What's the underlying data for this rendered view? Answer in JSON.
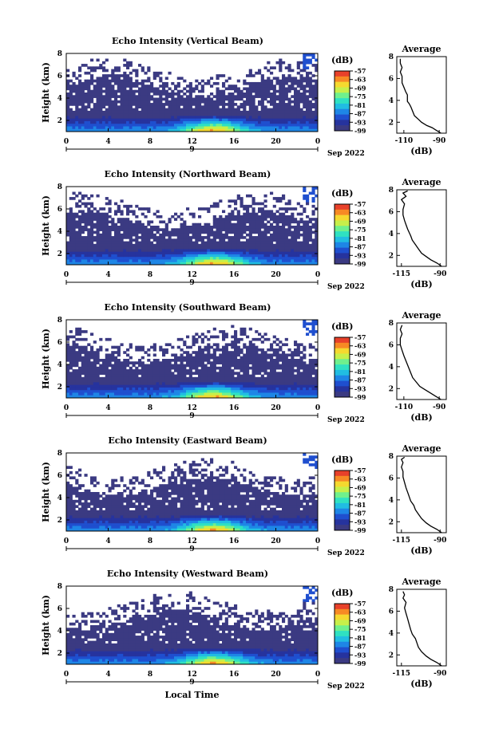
{
  "figure": {
    "xlabel": "Local Time",
    "colormap": [
      "#3b3a82",
      "#26339e",
      "#1f4fcf",
      "#1e86e6",
      "#21bde2",
      "#2fe1c2",
      "#6ff08d",
      "#c7ef4a",
      "#f5d92f",
      "#f78a24",
      "#e8412a"
    ]
  },
  "chart_data": [
    {
      "type": "heatmap",
      "title": "Echo Intensity (Vertical Beam)",
      "ylabel": "Height (km)",
      "x_ticks": [
        "0",
        "4",
        "8",
        "12",
        "16",
        "20",
        "0"
      ],
      "xlim": [
        0,
        24
      ],
      "date_day": "9",
      "date_month": "Sep 2022",
      "ylim": [
        1,
        8
      ],
      "y_ticks": [
        "2",
        "4",
        "6",
        "8"
      ],
      "colorbar_label": "(dB)",
      "colorbar_ticks": [
        "-57",
        "-63",
        "-69",
        "-75",
        "-81",
        "-87",
        "-93",
        "-99"
      ],
      "colorbar_range": [
        -99,
        -57
      ],
      "profile": {
        "title": "Average",
        "xlabel": "(dB)",
        "x_ticks": [
          "-110",
          "-90"
        ],
        "xlim": [
          -114,
          -86
        ],
        "y_ticks": [
          "2",
          "4",
          "6",
          "8"
        ],
        "ylim": [
          1,
          8
        ],
        "points": [
          [
            -89,
            1.0
          ],
          [
            -92,
            1.3
          ],
          [
            -94,
            1.5
          ],
          [
            -97,
            1.7
          ],
          [
            -100,
            2.0
          ],
          [
            -102,
            2.3
          ],
          [
            -104,
            2.6
          ],
          [
            -105,
            3.0
          ],
          [
            -106,
            3.4
          ],
          [
            -107,
            3.7
          ],
          [
            -108,
            3.9
          ],
          [
            -108,
            4.2
          ],
          [
            -108,
            4.5
          ],
          [
            -109,
            4.8
          ],
          [
            -110,
            5.2
          ],
          [
            -111,
            5.6
          ],
          [
            -111,
            6.2
          ],
          [
            -112,
            6.6
          ],
          [
            -111,
            7.0
          ],
          [
            -112,
            7.4
          ],
          [
            -112,
            7.8
          ]
        ]
      }
    },
    {
      "type": "heatmap",
      "title": "Echo Intensity (Northward Beam)",
      "ylabel": "Height (km)",
      "x_ticks": [
        "0",
        "4",
        "8",
        "12",
        "16",
        "20",
        "0"
      ],
      "xlim": [
        0,
        24
      ],
      "date_day": "9",
      "date_month": "Sep 2022",
      "ylim": [
        1,
        8
      ],
      "y_ticks": [
        "2",
        "4",
        "6",
        "8"
      ],
      "colorbar_label": "(dB)",
      "colorbar_ticks": [
        "-57",
        "-63",
        "-69",
        "-75",
        "-81",
        "-87",
        "-93",
        "-99"
      ],
      "colorbar_range": [
        -99,
        -57
      ],
      "profile": {
        "title": "Average",
        "xlabel": "(dB)",
        "x_ticks": [
          "-115",
          "-90"
        ],
        "xlim": [
          -118,
          -86
        ],
        "y_ticks": [
          "2",
          "4",
          "6",
          "8"
        ],
        "ylim": [
          1,
          8
        ],
        "points": [
          [
            -89,
            1.0
          ],
          [
            -92,
            1.3
          ],
          [
            -96,
            1.6
          ],
          [
            -99,
            1.9
          ],
          [
            -102,
            2.2
          ],
          [
            -104,
            2.6
          ],
          [
            -106,
            3.0
          ],
          [
            -108,
            3.4
          ],
          [
            -109,
            3.8
          ],
          [
            -110,
            4.1
          ],
          [
            -111,
            4.4
          ],
          [
            -112,
            4.8
          ],
          [
            -113,
            5.2
          ],
          [
            -114,
            5.7
          ],
          [
            -114,
            6.2
          ],
          [
            -113,
            6.7
          ],
          [
            -115,
            7.1
          ],
          [
            -112,
            7.4
          ],
          [
            -114,
            7.7
          ],
          [
            -111,
            7.9
          ]
        ]
      }
    },
    {
      "type": "heatmap",
      "title": "Echo Intensity (Southward Beam)",
      "ylabel": "Height (km)",
      "x_ticks": [
        "0",
        "4",
        "8",
        "12",
        "16",
        "20",
        "0"
      ],
      "xlim": [
        0,
        24
      ],
      "date_day": "9",
      "date_month": "Sep 2022",
      "ylim": [
        1,
        8
      ],
      "y_ticks": [
        "2",
        "4",
        "6",
        "8"
      ],
      "colorbar_label": "(dB)",
      "colorbar_ticks": [
        "-57",
        "-63",
        "-69",
        "-75",
        "-81",
        "-87",
        "-93",
        "-99"
      ],
      "colorbar_range": [
        -99,
        -57
      ],
      "profile": {
        "title": "Average",
        "xlabel": "(dB)",
        "x_ticks": [
          "-110",
          "-90"
        ],
        "xlim": [
          -114,
          -86
        ],
        "y_ticks": [
          "2",
          "4",
          "6",
          "8"
        ],
        "ylim": [
          1,
          8
        ],
        "points": [
          [
            -89,
            1.0
          ],
          [
            -92,
            1.3
          ],
          [
            -95,
            1.6
          ],
          [
            -98,
            1.9
          ],
          [
            -101,
            2.2
          ],
          [
            -103,
            2.6
          ],
          [
            -105,
            3.0
          ],
          [
            -106,
            3.4
          ],
          [
            -107,
            3.8
          ],
          [
            -108,
            4.2
          ],
          [
            -109,
            4.6
          ],
          [
            -110,
            5.0
          ],
          [
            -111,
            5.5
          ],
          [
            -112,
            6.0
          ],
          [
            -112,
            6.6
          ],
          [
            -111,
            7.0
          ],
          [
            -112,
            7.4
          ],
          [
            -111,
            7.8
          ]
        ]
      }
    },
    {
      "type": "heatmap",
      "title": "Echo Intensity (Eastward Beam)",
      "ylabel": "Height (km)",
      "x_ticks": [
        "0",
        "4",
        "8",
        "12",
        "16",
        "20",
        "0"
      ],
      "xlim": [
        0,
        24
      ],
      "date_day": "9",
      "date_month": "Sep 2022",
      "ylim": [
        1,
        8
      ],
      "y_ticks": [
        "2",
        "4",
        "6",
        "8"
      ],
      "colorbar_label": "(dB)",
      "colorbar_ticks": [
        "-57",
        "-63",
        "-69",
        "-75",
        "-81",
        "-87",
        "-93",
        "-99"
      ],
      "colorbar_range": [
        -99,
        -57
      ],
      "profile": {
        "title": "Average",
        "xlabel": "(dB)",
        "x_ticks": [
          "-115",
          "-90"
        ],
        "xlim": [
          -118,
          -86
        ],
        "y_ticks": [
          "2",
          "4",
          "6",
          "8"
        ],
        "ylim": [
          1,
          8
        ],
        "points": [
          [
            -89,
            1.0
          ],
          [
            -92,
            1.3
          ],
          [
            -96,
            1.6
          ],
          [
            -99,
            1.9
          ],
          [
            -102,
            2.3
          ],
          [
            -104,
            2.7
          ],
          [
            -106,
            3.1
          ],
          [
            -107,
            3.5
          ],
          [
            -109,
            3.9
          ],
          [
            -110,
            4.3
          ],
          [
            -111,
            4.7
          ],
          [
            -112,
            5.1
          ],
          [
            -113,
            5.6
          ],
          [
            -114,
            6.1
          ],
          [
            -114,
            6.6
          ],
          [
            -115,
            7.0
          ],
          [
            -114,
            7.4
          ],
          [
            -115,
            7.7
          ],
          [
            -113,
            7.9
          ]
        ]
      }
    },
    {
      "type": "heatmap",
      "title": "Echo Intensity (Westward Beam)",
      "ylabel": "Height (km)",
      "x_ticks": [
        "0",
        "4",
        "8",
        "12",
        "16",
        "20",
        "0"
      ],
      "xlim": [
        0,
        24
      ],
      "date_day": "9",
      "date_month": "Sep 2022",
      "ylim": [
        1,
        8
      ],
      "y_ticks": [
        "2",
        "4",
        "6",
        "8"
      ],
      "colorbar_label": "(dB)",
      "colorbar_ticks": [
        "-57",
        "-63",
        "-69",
        "-75",
        "-81",
        "-87",
        "-93",
        "-99"
      ],
      "colorbar_range": [
        -99,
        -57
      ],
      "profile": {
        "title": "Average",
        "xlabel": "(dB)",
        "x_ticks": [
          "-115",
          "-90"
        ],
        "xlim": [
          -118,
          -86
        ],
        "y_ticks": [
          "2",
          "4",
          "6",
          "8"
        ],
        "ylim": [
          1,
          8
        ],
        "points": [
          [
            -89,
            1.0
          ],
          [
            -92,
            1.3
          ],
          [
            -96,
            1.6
          ],
          [
            -99,
            1.9
          ],
          [
            -102,
            2.3
          ],
          [
            -104,
            2.7
          ],
          [
            -105,
            3.1
          ],
          [
            -106,
            3.5
          ],
          [
            -108,
            3.9
          ],
          [
            -109,
            4.3
          ],
          [
            -110,
            4.8
          ],
          [
            -111,
            5.3
          ],
          [
            -112,
            5.8
          ],
          [
            -113,
            6.3
          ],
          [
            -112,
            6.8
          ],
          [
            -114,
            7.2
          ],
          [
            -113,
            7.5
          ],
          [
            -114,
            7.8
          ]
        ]
      }
    }
  ]
}
